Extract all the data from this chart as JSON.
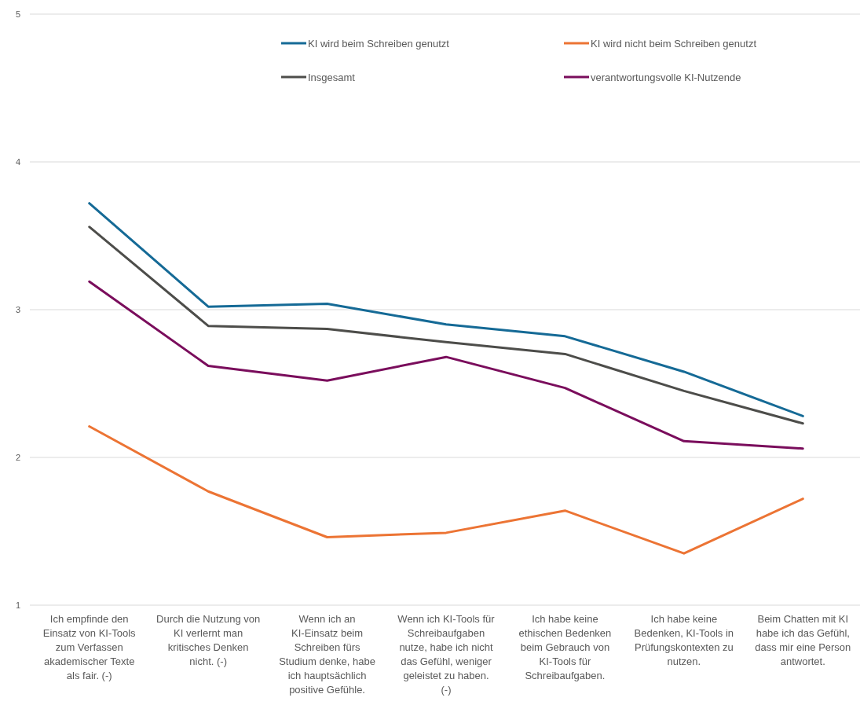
{
  "chart_data": {
    "type": "line",
    "categories": [
      "Ich empfinde den Einsatz von KI-Tools zum Verfassen akademischer Texte als fair. (-)",
      "Durch die Nutzung von KI verlernt man kritisches Denken nicht. (-)",
      "Wenn ich an KI-Einsatz beim Schreiben fürs Studium denke, habe ich hauptsächlich positive Gefühle.",
      "Wenn ich KI-Tools für Schreibaufgaben nutze, habe ich nicht das Gefühl, weniger geleistet zu haben. (-)",
      "Ich habe keine ethischen Bedenken beim Gebrauch von KI-Tools für Schreibaufgaben.",
      "Ich habe keine Bedenken, KI-Tools in Prüfungskontexten zu nutzen.",
      "Beim Chatten mit KI habe ich das Gefühl, dass mir eine Person antwortet."
    ],
    "series": [
      {
        "name": "KI wird beim Schreiben genutzt",
        "color": "#156a96",
        "values": [
          3.72,
          3.02,
          3.04,
          2.9,
          2.82,
          2.58,
          2.28
        ]
      },
      {
        "name": "KI wird nicht beim Schreiben genutzt",
        "color": "#ec7434",
        "values": [
          2.21,
          1.77,
          1.46,
          1.49,
          1.64,
          1.35,
          1.72
        ]
      },
      {
        "name": "Insgesamt",
        "color": "#4d4d4a",
        "values": [
          3.56,
          2.89,
          2.87,
          2.78,
          2.7,
          2.45,
          2.23
        ]
      },
      {
        "name": "verantwortungsvolle KI-Nutzende",
        "color": "#7a0d5c",
        "values": [
          3.19,
          2.62,
          2.52,
          2.68,
          2.47,
          2.11,
          2.06
        ]
      }
    ],
    "ylim": [
      1,
      5
    ],
    "yticks": [
      1,
      2,
      3,
      4,
      5
    ],
    "grid": "y",
    "legend": "top",
    "marker": "none",
    "line_style": "solid"
  }
}
